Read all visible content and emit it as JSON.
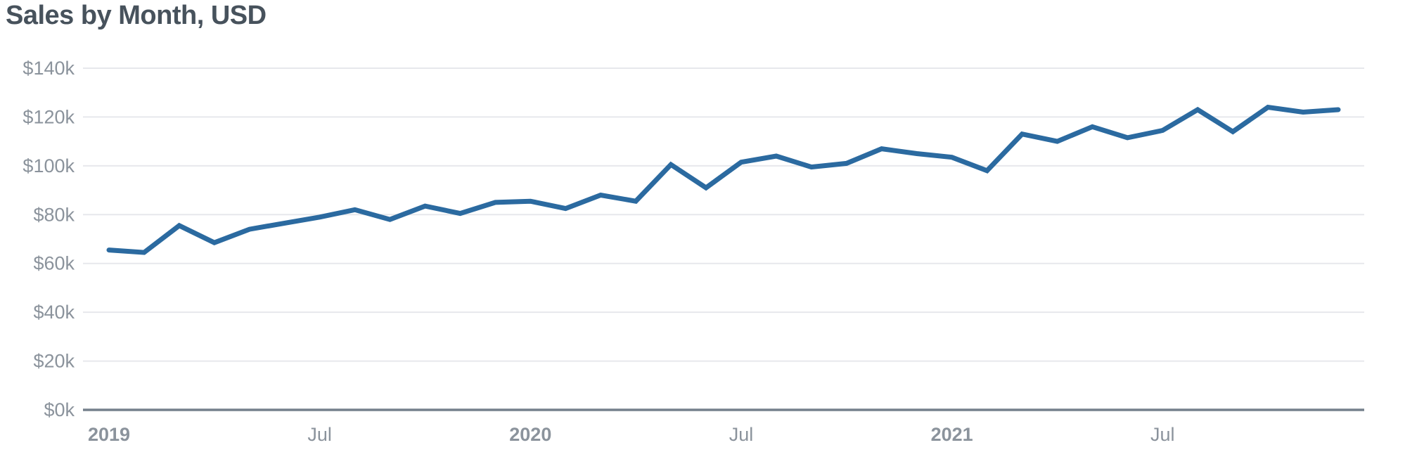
{
  "header": {
    "title": "Sales by Month, USD"
  },
  "colors": {
    "background": "#ffffff",
    "title_text": "#47525c",
    "tick_text": "#8b939c",
    "gridline": "#e7e8ec",
    "axis_line": "#75808c",
    "line": "#2b6aa0"
  },
  "chart_data": {
    "type": "line",
    "title": "Sales by Month, USD",
    "x": [
      "2019-01",
      "2019-02",
      "2019-03",
      "2019-04",
      "2019-05",
      "2019-06",
      "2019-07",
      "2019-08",
      "2019-09",
      "2019-10",
      "2019-11",
      "2019-12",
      "2020-01",
      "2020-02",
      "2020-03",
      "2020-04",
      "2020-05",
      "2020-06",
      "2020-07",
      "2020-08",
      "2020-09",
      "2020-10",
      "2020-11",
      "2020-12",
      "2021-01",
      "2021-02",
      "2021-03",
      "2021-04",
      "2021-05",
      "2021-06",
      "2021-07",
      "2021-08",
      "2021-09",
      "2021-10",
      "2021-11",
      "2021-12"
    ],
    "values_usd_thousands": [
      65.5,
      64.5,
      75.5,
      68.5,
      74,
      76.5,
      79,
      82,
      78,
      83.5,
      80.5,
      85,
      85.5,
      82.5,
      88,
      85.5,
      100.5,
      91,
      101.5,
      104,
      99.5,
      101,
      107,
      105,
      103.5,
      98,
      113,
      110,
      116,
      111.5,
      114.5,
      123,
      114,
      124,
      122,
      123
    ],
    "ylim_usd_thousands": [
      0,
      140
    ],
    "ytick_step_usd_thousands": 20,
    "ytick_labels": [
      "$0k",
      "$20k",
      "$40k",
      "$60k",
      "$80k",
      "$100k",
      "$120k",
      "$140k"
    ],
    "xticks": [
      {
        "index": 0,
        "label": "2019",
        "bold": true
      },
      {
        "index": 6,
        "label": "Jul",
        "bold": false
      },
      {
        "index": 12,
        "label": "2020",
        "bold": true
      },
      {
        "index": 18,
        "label": "Jul",
        "bold": false
      },
      {
        "index": 24,
        "label": "2021",
        "bold": true
      },
      {
        "index": 30,
        "label": "Jul",
        "bold": false
      }
    ],
    "grid": "horizontal-only",
    "legend": "none"
  }
}
